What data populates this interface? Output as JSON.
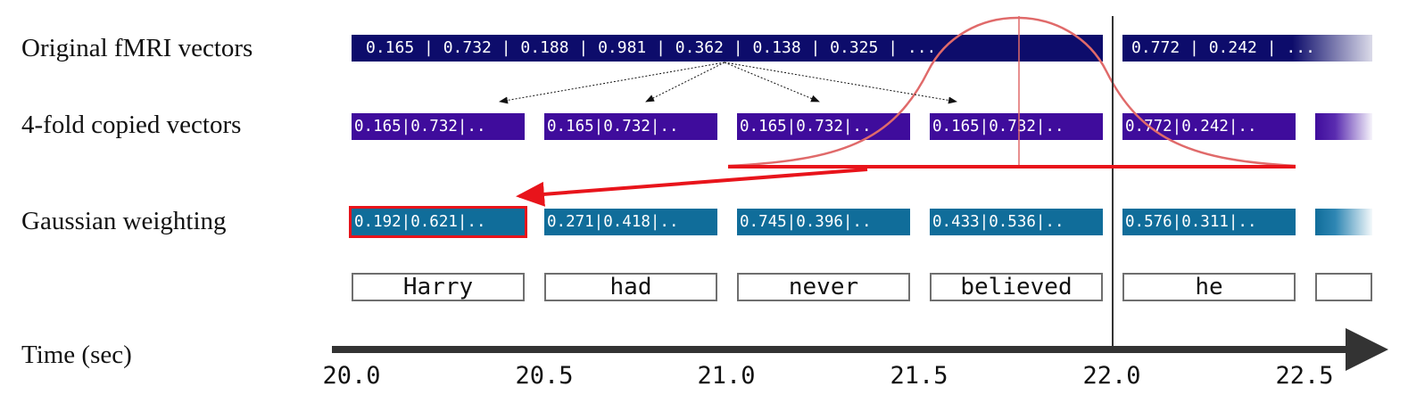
{
  "labels": {
    "original": "Original fMRI vectors",
    "copied": "4-fold copied vectors",
    "gaussian": "Gaussian weighting",
    "time": "Time (sec)"
  },
  "original_vectors": [
    "0.165 | 0.732 | 0.188 | 0.981 | 0.362 | 0.138 | 0.325 | ...",
    "0.772 | 0.242 | ..."
  ],
  "copied_vectors": [
    "0.165|0.732|..",
    "0.165|0.732|..",
    "0.165|0.732|..",
    "0.165|0.732|..",
    "0.772|0.242|.."
  ],
  "weighted_vectors": [
    "0.192|0.621|..",
    "0.271|0.418|..",
    "0.745|0.396|..",
    "0.433|0.536|..",
    "0.576|0.311|.."
  ],
  "words": [
    "Harry",
    "had",
    "never",
    "believed",
    "he",
    ""
  ],
  "time_ticks": [
    "20.0",
    "20.5",
    "21.0",
    "21.5",
    "22.0",
    "22.5"
  ],
  "colors": {
    "original": "#0d0c6b",
    "copied": "#3f0c9c",
    "weighted": "#106d9a",
    "gaussian_curve": "#e06a6a",
    "arrow_red": "#e8141b",
    "axis": "#333333"
  }
}
